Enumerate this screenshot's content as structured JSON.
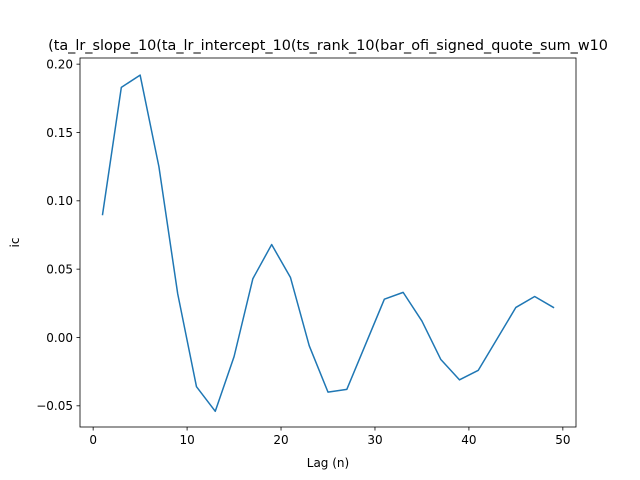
{
  "chart_data": {
    "type": "line",
    "title": "(ta_lr_slope_10(ta_lr_intercept_10(ts_rank_10(bar_ofi_signed_quote_sum_w10",
    "xlabel": "Lag (n)",
    "ylabel": "ic",
    "xlim": [
      -1.4,
      51.4
    ],
    "ylim": [
      -0.0655,
      0.2045
    ],
    "grid": false,
    "line_color": "#1f77b4",
    "x_ticks": [
      0,
      10,
      20,
      30,
      40,
      50
    ],
    "x_tick_labels": [
      "0",
      "10",
      "20",
      "30",
      "40",
      "50"
    ],
    "y_ticks": [
      -0.05,
      0.0,
      0.05,
      0.1,
      0.15,
      0.2
    ],
    "y_tick_labels": [
      "−0.05",
      "0.00",
      "0.05",
      "0.10",
      "0.15",
      "0.20"
    ],
    "series": [
      {
        "x": [
          1,
          3,
          5,
          7,
          9,
          11,
          13,
          15,
          17,
          19,
          21,
          23,
          25,
          27,
          29,
          31,
          33,
          35,
          37,
          39,
          41,
          43,
          45,
          47,
          49
        ],
        "values": [
          0.09,
          0.183,
          0.192,
          0.125,
          0.032,
          -0.036,
          -0.054,
          -0.014,
          0.043,
          0.068,
          0.044,
          -0.006,
          -0.04,
          -0.038,
          -0.005,
          0.028,
          0.033,
          0.012,
          -0.016,
          -0.031,
          -0.024,
          -0.001,
          0.022,
          0.03,
          0.022
        ]
      }
    ]
  }
}
